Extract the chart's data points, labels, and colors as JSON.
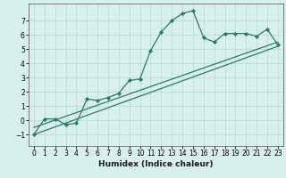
{
  "title": "",
  "xlabel": "Humidex (Indice chaleur)",
  "xlim": [
    -0.5,
    23.5
  ],
  "ylim": [
    -1.8,
    8.2
  ],
  "yticks": [
    -1,
    0,
    1,
    2,
    3,
    4,
    5,
    6,
    7
  ],
  "xticks": [
    0,
    1,
    2,
    3,
    4,
    5,
    6,
    7,
    8,
    9,
    10,
    11,
    12,
    13,
    14,
    15,
    16,
    17,
    18,
    19,
    20,
    21,
    22,
    23
  ],
  "bg_color": "#d8f0ec",
  "line_color": "#2a7a6a",
  "grid_color": "#b8d8d4",
  "main_x": [
    0,
    1,
    2,
    3,
    4,
    5,
    6,
    7,
    8,
    9,
    10,
    11,
    12,
    13,
    14,
    15,
    16,
    17,
    18,
    19,
    20,
    21,
    22,
    23
  ],
  "main_y": [
    -1.0,
    0.1,
    0.1,
    -0.3,
    -0.2,
    1.5,
    1.4,
    1.6,
    1.9,
    2.8,
    2.9,
    4.9,
    6.2,
    7.0,
    7.5,
    7.7,
    5.8,
    5.5,
    6.1,
    6.1,
    6.1,
    5.9,
    6.4,
    5.3
  ],
  "ref_line1_x": [
    0,
    23
  ],
  "ref_line1_y": [
    -1.0,
    5.2
  ],
  "ref_line2_x": [
    0,
    23
  ],
  "ref_line2_y": [
    -0.5,
    5.5
  ],
  "marker": "D",
  "markersize": 2.2,
  "linewidth": 0.9,
  "tick_fontsize": 5.5,
  "xlabel_fontsize": 6.5
}
